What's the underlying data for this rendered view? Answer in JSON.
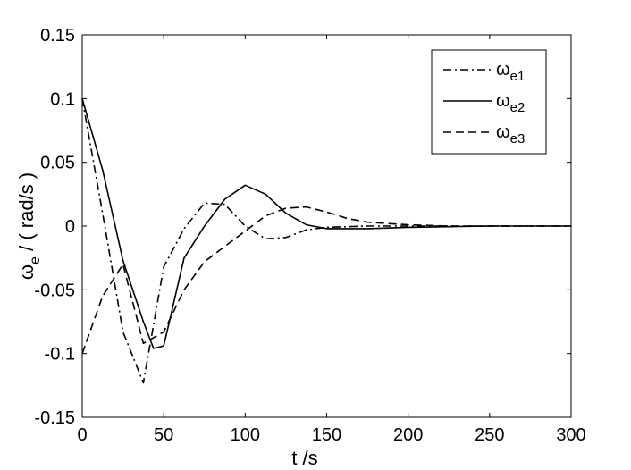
{
  "chart_data": {
    "type": "line",
    "title": "",
    "xlabel": "t /s",
    "ylabel": {
      "symbol": "ω",
      "subscript": "e",
      "unit": " / ( rad/s )"
    },
    "xlim": [
      0,
      300
    ],
    "ylim": [
      -0.15,
      0.15
    ],
    "xticks": [
      0,
      50,
      100,
      150,
      200,
      250,
      300
    ],
    "xtick_labels": [
      "0",
      "50",
      "100",
      "150",
      "200",
      "250",
      "300"
    ],
    "yticks": [
      -0.15,
      -0.1,
      -0.05,
      0,
      0.05,
      0.1,
      0.15
    ],
    "ytick_labels": [
      "-0.15",
      "-0.1",
      "-0.05",
      "0",
      "0.05",
      "0.1",
      "0.15"
    ],
    "grid": false,
    "legend_position": "top-right",
    "series": [
      {
        "name": "ωe1",
        "symbol": "ω",
        "subscript": "e1",
        "line_style": "dashdot",
        "color": "#000000",
        "x": [
          0,
          12.5,
          25,
          37.5,
          50,
          62.5,
          75,
          87.5,
          100,
          112.5,
          125,
          137.5,
          150,
          175,
          200,
          250,
          300
        ],
        "y": [
          0.1,
          0.01,
          -0.083,
          -0.123,
          -0.032,
          -0.002,
          0.018,
          0.017,
          0.0,
          -0.01,
          -0.009,
          -0.003,
          -0.001,
          0.0,
          0.0,
          0.0,
          0.0
        ]
      },
      {
        "name": "ωe2",
        "symbol": "ω",
        "subscript": "e2",
        "line_style": "solid",
        "color": "#000000",
        "x": [
          0,
          12.5,
          25,
          37.5,
          43.75,
          50,
          62.5,
          75,
          87.5,
          100,
          112.5,
          125,
          137.5,
          150,
          175,
          200,
          250,
          300
        ],
        "y": [
          0.1,
          0.044,
          -0.027,
          -0.075,
          -0.096,
          -0.094,
          -0.025,
          0.0,
          0.021,
          0.032,
          0.025,
          0.01,
          0.001,
          -0.002,
          -0.002,
          -0.001,
          0.0,
          0.0
        ]
      },
      {
        "name": "ωe3",
        "symbol": "ω",
        "subscript": "e3",
        "line_style": "dashed",
        "color": "#000000",
        "x": [
          0,
          12.5,
          25,
          37.5,
          50,
          62.5,
          75,
          87.5,
          100,
          112.5,
          125,
          137.5,
          150,
          162.5,
          175,
          200,
          225,
          300
        ],
        "y": [
          -0.1,
          -0.055,
          -0.03,
          -0.092,
          -0.083,
          -0.05,
          -0.028,
          -0.016,
          -0.004,
          0.008,
          0.014,
          0.015,
          0.011,
          0.006,
          0.003,
          0.001,
          0.0,
          0.0
        ]
      }
    ]
  }
}
